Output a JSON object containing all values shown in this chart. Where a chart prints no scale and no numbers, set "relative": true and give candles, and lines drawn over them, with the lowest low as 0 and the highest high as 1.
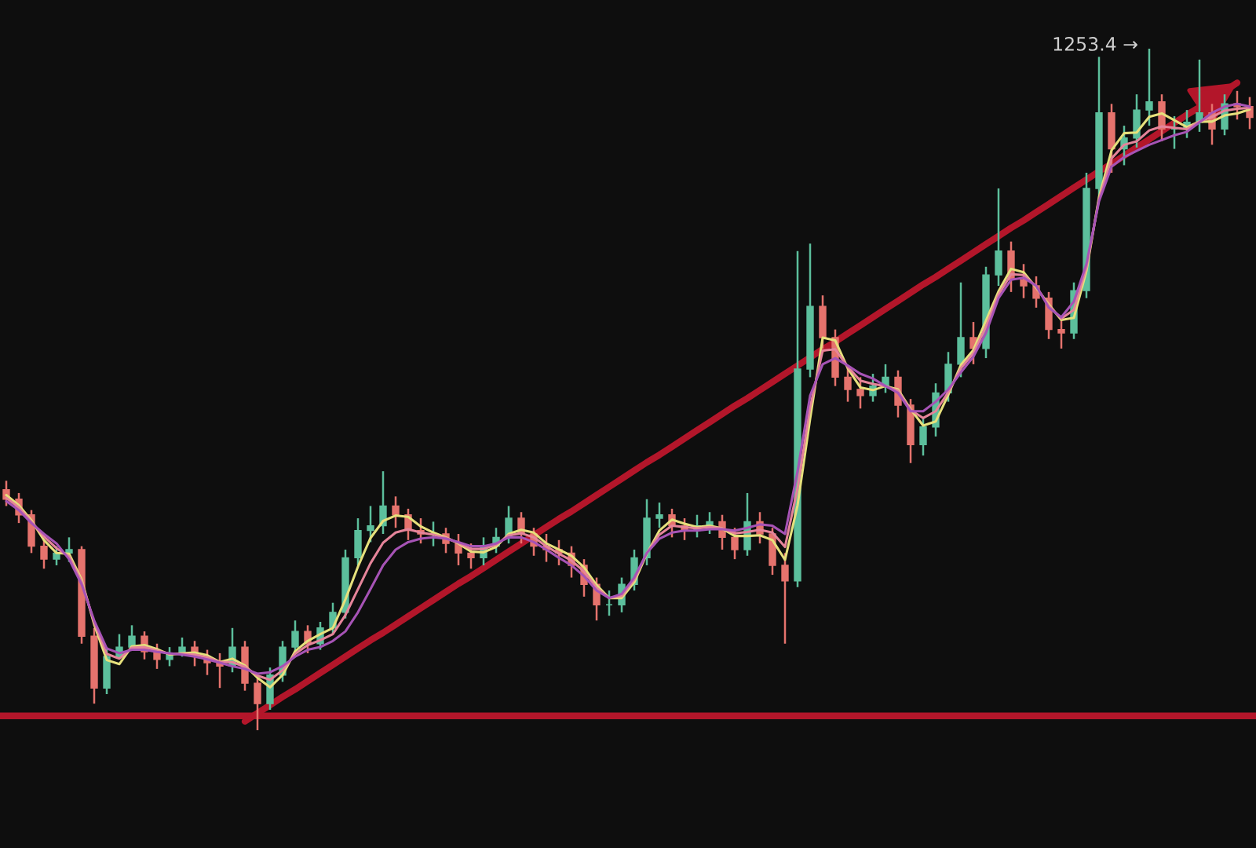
{
  "chart_data": {
    "type": "candlestick",
    "relative": true,
    "categories": [
      null,
      null,
      null,
      null,
      null,
      null,
      null,
      null,
      null,
      null,
      null,
      null,
      null,
      null,
      null,
      null,
      null,
      null,
      null,
      null,
      null,
      null,
      null,
      null,
      null,
      null,
      null,
      null,
      null,
      null,
      null,
      null,
      null,
      null,
      null,
      null,
      null,
      null,
      null,
      null,
      null,
      null,
      null,
      null,
      null,
      null,
      null,
      null,
      null,
      null,
      null,
      null,
      null,
      null,
      null,
      null,
      null,
      null,
      null,
      null,
      null,
      null,
      null,
      null,
      null,
      null,
      null,
      null,
      null,
      null,
      null,
      null,
      null,
      null,
      null,
      null,
      null,
      null,
      null,
      null,
      null,
      null,
      null,
      null,
      null,
      null,
      null,
      null,
      null,
      null,
      null,
      null,
      null,
      null,
      null,
      null,
      null,
      null,
      null,
      null
    ],
    "ohlc": [
      [
        0.353,
        0.366,
        0.329,
        0.339
      ],
      [
        0.339,
        0.348,
        0.304,
        0.316
      ],
      [
        0.316,
        0.323,
        0.26,
        0.27
      ],
      [
        0.27,
        0.279,
        0.237,
        0.251
      ],
      [
        0.251,
        0.27,
        0.242,
        0.26
      ],
      [
        0.26,
        0.283,
        0.247,
        0.265
      ],
      [
        0.265,
        0.27,
        0.127,
        0.138
      ],
      [
        0.138,
        0.15,
        0.039,
        0.062
      ],
      [
        0.062,
        0.122,
        0.053,
        0.108
      ],
      [
        0.108,
        0.141,
        0.104,
        0.122
      ],
      [
        0.122,
        0.154,
        0.118,
        0.138
      ],
      [
        0.138,
        0.145,
        0.104,
        0.115
      ],
      [
        0.115,
        0.127,
        0.09,
        0.104
      ],
      [
        0.104,
        0.122,
        0.094,
        0.113
      ],
      [
        0.113,
        0.136,
        0.108,
        0.122
      ],
      [
        0.122,
        0.131,
        0.094,
        0.108
      ],
      [
        0.108,
        0.118,
        0.081,
        0.099
      ],
      [
        0.099,
        0.113,
        0.062,
        0.094
      ],
      [
        0.094,
        0.15,
        0.085,
        0.122
      ],
      [
        0.122,
        0.131,
        0.058,
        0.069
      ],
      [
        0.069,
        0.081,
        0,
        0.039
      ],
      [
        0.039,
        0.092,
        0.03,
        0.081
      ],
      [
        0.081,
        0.131,
        0.071,
        0.122
      ],
      [
        0.122,
        0.161,
        0.113,
        0.145
      ],
      [
        0.145,
        0.154,
        0.113,
        0.127
      ],
      [
        0.127,
        0.159,
        0.118,
        0.15
      ],
      [
        0.15,
        0.187,
        0.141,
        0.173
      ],
      [
        0.173,
        0.265,
        0.164,
        0.253
      ],
      [
        0.253,
        0.311,
        0.242,
        0.293
      ],
      [
        0.293,
        0.329,
        0.276,
        0.3
      ],
      [
        0.3,
        0.38,
        0.288,
        0.329
      ],
      [
        0.329,
        0.343,
        0.297,
        0.316
      ],
      [
        0.316,
        0.325,
        0.279,
        0.293
      ],
      [
        0.293,
        0.311,
        0.274,
        0.288
      ],
      [
        0.288,
        0.306,
        0.27,
        0.288
      ],
      [
        0.288,
        0.297,
        0.26,
        0.274
      ],
      [
        0.274,
        0.288,
        0.242,
        0.26
      ],
      [
        0.26,
        0.274,
        0.237,
        0.253
      ],
      [
        0.253,
        0.283,
        0.242,
        0.27
      ],
      [
        0.27,
        0.297,
        0.26,
        0.283
      ],
      [
        0.283,
        0.329,
        0.274,
        0.311
      ],
      [
        0.311,
        0.32,
        0.274,
        0.288
      ],
      [
        0.288,
        0.297,
        0.256,
        0.27
      ],
      [
        0.27,
        0.288,
        0.247,
        0.265
      ],
      [
        0.265,
        0.279,
        0.242,
        0.26
      ],
      [
        0.26,
        0.27,
        0.224,
        0.242
      ],
      [
        0.242,
        0.251,
        0.196,
        0.214
      ],
      [
        0.214,
        0.224,
        0.161,
        0.184
      ],
      [
        0.184,
        0.205,
        0.168,
        0.184
      ],
      [
        0.184,
        0.224,
        0.173,
        0.214
      ],
      [
        0.214,
        0.265,
        0.205,
        0.253
      ],
      [
        0.253,
        0.339,
        0.242,
        0.311
      ],
      [
        0.311,
        0.334,
        0.297,
        0.316
      ],
      [
        0.316,
        0.325,
        0.283,
        0.3
      ],
      [
        0.3,
        0.311,
        0.279,
        0.293
      ],
      [
        0.293,
        0.316,
        0.283,
        0.3
      ],
      [
        0.3,
        0.32,
        0.288,
        0.306
      ],
      [
        0.306,
        0.316,
        0.265,
        0.283
      ],
      [
        0.283,
        0.297,
        0.251,
        0.265
      ],
      [
        0.265,
        0.348,
        0.256,
        0.306
      ],
      [
        0.306,
        0.32,
        0.274,
        0.288
      ],
      [
        0.288,
        0.297,
        0.228,
        0.242
      ],
      [
        0.242,
        0.26,
        0.127,
        0.219
      ],
      [
        0.219,
        0.703,
        0.21,
        0.53
      ],
      [
        0.53,
        0.714,
        0.518,
        0.622
      ],
      [
        0.622,
        0.638,
        0.56,
        0.576
      ],
      [
        0.576,
        0.588,
        0.505,
        0.518
      ],
      [
        0.518,
        0.532,
        0.482,
        0.5
      ],
      [
        0.5,
        0.518,
        0.472,
        0.491
      ],
      [
        0.491,
        0.523,
        0.482,
        0.505
      ],
      [
        0.505,
        0.537,
        0.495,
        0.518
      ],
      [
        0.518,
        0.528,
        0.459,
        0.477
      ],
      [
        0.477,
        0.486,
        0.392,
        0.419
      ],
      [
        0.419,
        0.459,
        0.403,
        0.445
      ],
      [
        0.445,
        0.509,
        0.431,
        0.495
      ],
      [
        0.495,
        0.555,
        0.482,
        0.537
      ],
      [
        0.537,
        0.657,
        0.518,
        0.576
      ],
      [
        0.576,
        0.599,
        0.537,
        0.56
      ],
      [
        0.56,
        0.68,
        0.546,
        0.668
      ],
      [
        0.668,
        0.795,
        0.652,
        0.703
      ],
      [
        0.703,
        0.717,
        0.643,
        0.661
      ],
      [
        0.661,
        0.684,
        0.634,
        0.652
      ],
      [
        0.652,
        0.666,
        0.62,
        0.634
      ],
      [
        0.634,
        0.643,
        0.574,
        0.588
      ],
      [
        0.588,
        0.601,
        0.56,
        0.583
      ],
      [
        0.583,
        0.657,
        0.574,
        0.645
      ],
      [
        0.645,
        0.818,
        0.634,
        0.795
      ],
      [
        0.795,
        0.988,
        0.781,
        0.906
      ],
      [
        0.906,
        0.919,
        0.818,
        0.853
      ],
      [
        0.853,
        0.887,
        0.829,
        0.869
      ],
      [
        0.869,
        0.933,
        0.855,
        0.91
      ],
      [
        0.91,
        1.0,
        0.887,
        0.922
      ],
      [
        0.922,
        0.933,
        0.864,
        0.882
      ],
      [
        0.882,
        0.901,
        0.853,
        0.882
      ],
      [
        0.882,
        0.91,
        0.869,
        0.892
      ],
      [
        0.892,
        0.984,
        0.878,
        0.906
      ],
      [
        0.906,
        0.919,
        0.859,
        0.882
      ],
      [
        0.882,
        0.933,
        0.873,
        0.919
      ],
      [
        0.919,
        0.938,
        0.896,
        0.915
      ],
      [
        0.915,
        0.929,
        0.882,
        0.899
      ]
    ],
    "colors": [
      "#e5736d",
      "#e5736d",
      "#e5736d",
      "#e5736d",
      "#5cbf9c",
      "#5cbf9c",
      "#e5736d",
      "#e5736d",
      "#5cbf9c",
      "#5cbf9c",
      "#5cbf9c",
      "#e5736d",
      "#e5736d",
      "#5cbf9c",
      "#5cbf9c",
      "#e5736d",
      "#e5736d",
      "#e5736d",
      "#5cbf9c",
      "#e5736d",
      "#e5736d",
      "#5cbf9c",
      "#5cbf9c",
      "#5cbf9c",
      "#e5736d",
      "#5cbf9c",
      "#5cbf9c",
      "#5cbf9c",
      "#5cbf9c",
      "#5cbf9c",
      "#5cbf9c",
      "#e5736d",
      "#e5736d",
      "#e5736d",
      "#5cbf9c",
      "#e5736d",
      "#e5736d",
      "#e5736d",
      "#5cbf9c",
      "#5cbf9c",
      "#5cbf9c",
      "#e5736d",
      "#e5736d",
      "#e5736d",
      "#e5736d",
      "#e5736d",
      "#e5736d",
      "#e5736d",
      "#5cbf9c",
      "#5cbf9c",
      "#5cbf9c",
      "#5cbf9c",
      "#5cbf9c",
      "#e5736d",
      "#e5736d",
      "#5cbf9c",
      "#5cbf9c",
      "#e5736d",
      "#e5736d",
      "#5cbf9c",
      "#e5736d",
      "#e5736d",
      "#e5736d",
      "#5cbf9c",
      "#5cbf9c",
      "#e5736d",
      "#e5736d",
      "#e5736d",
      "#e5736d",
      "#5cbf9c",
      "#5cbf9c",
      "#e5736d",
      "#e5736d",
      "#5cbf9c",
      "#5cbf9c",
      "#5cbf9c",
      "#5cbf9c",
      "#e5736d",
      "#5cbf9c",
      "#5cbf9c",
      "#e5736d",
      "#e5736d",
      "#e5736d",
      "#e5736d",
      "#e5736d",
      "#5cbf9c",
      "#5cbf9c",
      "#5cbf9c",
      "#e5736d",
      "#5cbf9c",
      "#5cbf9c",
      "#5cbf9c",
      "#e5736d",
      "#5cbf9c",
      "#5cbf9c",
      "#5cbf9c",
      "#e5736d",
      "#5cbf9c",
      "#e5736d",
      "#e5736d"
    ],
    "series": [
      {
        "type": "line",
        "color": "#e6e07c",
        "values": [
          0.345,
          0.33,
          0.308,
          0.279,
          0.26,
          0.259,
          0.221,
          0.155,
          0.103,
          0.097,
          0.123,
          0.125,
          0.119,
          0.111,
          0.113,
          0.114,
          0.11,
          0.1,
          0.105,
          0.095,
          0.077,
          0.063,
          0.081,
          0.116,
          0.131,
          0.141,
          0.15,
          0.192,
          0.24,
          0.282,
          0.307,
          0.315,
          0.313,
          0.299,
          0.29,
          0.283,
          0.274,
          0.262,
          0.261,
          0.269,
          0.288,
          0.294,
          0.29,
          0.274,
          0.265,
          0.256,
          0.239,
          0.213,
          0.194,
          0.194,
          0.217,
          0.259,
          0.293,
          0.309,
          0.303,
          0.298,
          0.3,
          0.296,
          0.285,
          0.285,
          0.286,
          0.279,
          0.25,
          0.33,
          0.457,
          0.576,
          0.572,
          0.531,
          0.503,
          0.499,
          0.505,
          0.5,
          0.471,
          0.447,
          0.453,
          0.492,
          0.536,
          0.558,
          0.601,
          0.644,
          0.677,
          0.672,
          0.649,
          0.625,
          0.602,
          0.605,
          0.674,
          0.782,
          0.851,
          0.876,
          0.877,
          0.9,
          0.905,
          0.895,
          0.885,
          0.893,
          0.893,
          0.902,
          0.905,
          0.911
        ]
      },
      {
        "type": "line",
        "color": "#e5849a",
        "values": [
          0.341,
          0.327,
          0.306,
          0.284,
          0.267,
          0.255,
          0.218,
          0.158,
          0.112,
          0.105,
          0.121,
          0.122,
          0.117,
          0.112,
          0.112,
          0.111,
          0.107,
          0.1,
          0.1,
          0.093,
          0.08,
          0.074,
          0.088,
          0.112,
          0.125,
          0.132,
          0.141,
          0.169,
          0.207,
          0.245,
          0.275,
          0.29,
          0.295,
          0.29,
          0.287,
          0.282,
          0.275,
          0.266,
          0.266,
          0.272,
          0.286,
          0.289,
          0.283,
          0.27,
          0.259,
          0.249,
          0.233,
          0.209,
          0.194,
          0.197,
          0.221,
          0.26,
          0.287,
          0.3,
          0.298,
          0.296,
          0.298,
          0.296,
          0.289,
          0.291,
          0.294,
          0.29,
          0.269,
          0.355,
          0.474,
          0.557,
          0.559,
          0.533,
          0.513,
          0.508,
          0.505,
          0.498,
          0.47,
          0.458,
          0.468,
          0.496,
          0.531,
          0.553,
          0.592,
          0.639,
          0.669,
          0.668,
          0.651,
          0.623,
          0.604,
          0.617,
          0.679,
          0.779,
          0.839,
          0.859,
          0.864,
          0.88,
          0.886,
          0.884,
          0.882,
          0.893,
          0.9,
          0.909,
          0.912,
          0.913
        ]
      },
      {
        "type": "line",
        "color": "#a653b5",
        "values": [
          0.336,
          0.323,
          0.304,
          0.288,
          0.274,
          0.251,
          0.214,
          0.161,
          0.12,
          0.113,
          0.118,
          0.118,
          0.115,
          0.113,
          0.111,
          0.108,
          0.104,
          0.099,
          0.094,
          0.09,
          0.083,
          0.085,
          0.094,
          0.108,
          0.118,
          0.122,
          0.131,
          0.145,
          0.173,
          0.207,
          0.242,
          0.265,
          0.276,
          0.281,
          0.283,
          0.281,
          0.276,
          0.27,
          0.27,
          0.274,
          0.283,
          0.283,
          0.276,
          0.265,
          0.253,
          0.242,
          0.226,
          0.205,
          0.194,
          0.2,
          0.224,
          0.26,
          0.281,
          0.29,
          0.293,
          0.293,
          0.295,
          0.295,
          0.293,
          0.297,
          0.302,
          0.3,
          0.288,
          0.38,
          0.491,
          0.537,
          0.546,
          0.535,
          0.523,
          0.516,
          0.505,
          0.495,
          0.468,
          0.468,
          0.482,
          0.5,
          0.525,
          0.548,
          0.583,
          0.634,
          0.661,
          0.664,
          0.652,
          0.62,
          0.606,
          0.629,
          0.684,
          0.776,
          0.827,
          0.841,
          0.85,
          0.859,
          0.866,
          0.873,
          0.878,
          0.892,
          0.906,
          0.915,
          0.919,
          0.915
        ]
      },
      {
        "type": "line",
        "color": "#b3162a",
        "values": [
          null,
          null,
          null,
          null,
          null,
          null,
          null,
          null,
          null,
          null,
          null,
          null,
          null,
          null,
          null,
          null,
          null,
          null,
          null,
          0.013,
          0.025,
          0.037,
          0.049,
          0.06,
          0.072,
          0.084,
          0.096,
          0.108,
          0.12,
          0.132,
          0.143,
          0.155,
          0.167,
          0.179,
          0.191,
          0.203,
          0.215,
          0.226,
          0.238,
          0.25,
          0.262,
          0.274,
          0.286,
          0.298,
          0.31,
          0.321,
          0.333,
          0.345,
          0.357,
          0.369,
          0.381,
          0.393,
          0.404,
          0.416,
          0.428,
          0.44,
          0.452,
          0.464,
          0.476,
          0.487,
          0.499,
          0.511,
          0.523,
          0.535,
          0.547,
          0.559,
          0.57,
          0.582,
          0.594,
          0.606,
          0.618,
          0.63,
          0.642,
          0.654,
          0.665,
          0.677,
          0.689,
          0.701,
          0.713,
          0.725,
          0.737,
          0.748,
          0.76,
          0.772,
          0.784,
          0.796,
          0.808,
          0.82,
          0.831,
          0.843,
          0.855,
          0.867,
          0.879,
          0.891,
          0.903,
          0.914,
          null,
          null,
          0.95,
          null
        ]
      }
    ],
    "ref_lines": [
      {
        "axis": "y",
        "value": 0.021,
        "color": "#b3162a"
      }
    ],
    "annotations": [
      "1253.4 →"
    ]
  }
}
